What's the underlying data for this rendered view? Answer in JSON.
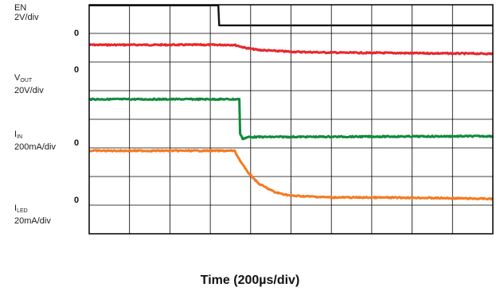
{
  "chart_data": {
    "type": "line",
    "title": "",
    "xlabel": "Time (200µs/div)",
    "ylabel": "",
    "x_divisions": 10,
    "y_divisions": 8,
    "grid": true,
    "background": "#ffffff",
    "grid_color": "#000000",
    "series": [
      {
        "key": "en",
        "label_main": "EN",
        "label_sub": "",
        "scale": "2V/div",
        "zero_label": "0",
        "color": "#111111",
        "zero_div": 6.98,
        "points": [
          [
            0,
            7.98
          ],
          [
            3.2,
            7.98
          ],
          [
            3.22,
            7.28
          ],
          [
            3.3,
            7.28
          ],
          [
            10,
            7.28
          ]
        ]
      },
      {
        "key": "vout",
        "label_main": "V",
        "label_sub": "OUT",
        "scale": "20V/div",
        "zero_label": "0",
        "color": "#e8262d",
        "zero_div": 5.7,
        "points": [
          [
            0,
            6.6
          ],
          [
            3.6,
            6.6
          ],
          [
            3.85,
            6.5
          ],
          [
            4.2,
            6.42
          ],
          [
            5.0,
            6.36
          ],
          [
            6.0,
            6.33
          ],
          [
            8.0,
            6.31
          ],
          [
            10,
            6.29
          ]
        ]
      },
      {
        "key": "iin",
        "label_main": "I",
        "label_sub": "IN",
        "scale": "200mA/div",
        "zero_label": "0",
        "color": "#128a3d",
        "zero_div": 3.15,
        "points": [
          [
            0,
            4.7
          ],
          [
            3.72,
            4.7
          ],
          [
            3.74,
            3.5
          ],
          [
            3.8,
            3.32
          ],
          [
            3.95,
            3.38
          ],
          [
            6.0,
            3.39
          ],
          [
            10,
            3.41
          ]
        ]
      },
      {
        "key": "iled",
        "label_main": "I",
        "label_sub": "LED",
        "scale": "20mA/div",
        "zero_label": "0",
        "color": "#f57a22",
        "zero_div": 1.15,
        "points": [
          [
            0,
            2.9
          ],
          [
            3.6,
            2.9
          ],
          [
            3.7,
            2.65
          ],
          [
            3.9,
            2.2
          ],
          [
            4.2,
            1.75
          ],
          [
            4.6,
            1.45
          ],
          [
            5.0,
            1.33
          ],
          [
            6.0,
            1.27
          ],
          [
            8.0,
            1.26
          ],
          [
            10,
            1.22
          ]
        ]
      }
    ]
  }
}
